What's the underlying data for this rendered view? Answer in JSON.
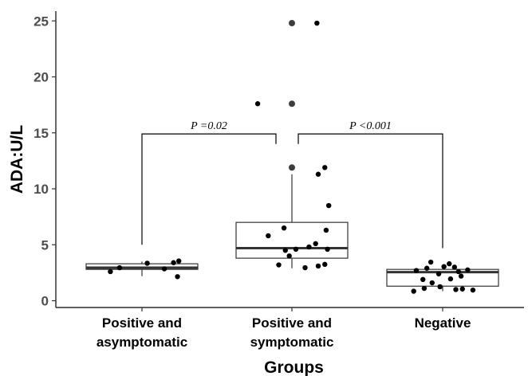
{
  "chart_data": {
    "type": "box",
    "title": "",
    "xlabel": "Groups",
    "ylabel": "ADA:U/L",
    "ylim": [
      0,
      26
    ],
    "yticks": [
      0,
      5,
      10,
      15,
      20,
      25
    ],
    "grid": false,
    "legend": "none",
    "categories": [
      "Positive and\nasymptomatic",
      "Positive and\nsymptomatic",
      "Negative"
    ],
    "boxes": [
      {
        "category": "Positive and\nasymptomatic",
        "whisker_low": 2.2,
        "q1": 2.8,
        "median": 2.95,
        "q3": 3.3,
        "whisker_high": 3.5,
        "outliers": []
      },
      {
        "category": "Positive and\nsymptomatic",
        "whisker_low": 2.9,
        "q1": 3.8,
        "median": 4.7,
        "q3": 7.0,
        "whisker_high": 11.3,
        "outliers": [
          11.9,
          17.6,
          24.8
        ]
      },
      {
        "category": "Negative",
        "whisker_low": 0.85,
        "q1": 1.3,
        "median": 2.55,
        "q3": 2.8,
        "whisker_high": 3.2,
        "outliers": []
      }
    ],
    "points": [
      {
        "category": "Positive and\nasymptomatic",
        "x_offset": -0.24,
        "y": 2.6
      },
      {
        "category": "Positive and\nasymptomatic",
        "x_offset": -0.17,
        "y": 2.95
      },
      {
        "category": "Positive and\nasymptomatic",
        "x_offset": 0.04,
        "y": 3.35
      },
      {
        "category": "Positive and\nasymptomatic",
        "x_offset": 0.17,
        "y": 2.85
      },
      {
        "category": "Positive and\nasymptomatic",
        "x_offset": 0.24,
        "y": 3.4
      },
      {
        "category": "Positive and\nasymptomatic",
        "x_offset": 0.28,
        "y": 3.55
      },
      {
        "category": "Positive and\nasymptomatic",
        "x_offset": 0.27,
        "y": 2.15
      },
      {
        "category": "Positive and\nsymptomatic",
        "x_offset": -0.18,
        "y": 5.8
      },
      {
        "category": "Positive and\nsymptomatic",
        "x_offset": -0.06,
        "y": 6.5
      },
      {
        "category": "Positive and\nsymptomatic",
        "x_offset": -0.05,
        "y": 4.5
      },
      {
        "category": "Positive and\nsymptomatic",
        "x_offset": -0.02,
        "y": 4.0
      },
      {
        "category": "Positive and\nsymptomatic",
        "x_offset": 0.03,
        "y": 4.6
      },
      {
        "category": "Positive and\nsymptomatic",
        "x_offset": 0.13,
        "y": 4.8
      },
      {
        "category": "Positive and\nsymptomatic",
        "x_offset": 0.18,
        "y": 5.1
      },
      {
        "category": "Positive and\nsymptomatic",
        "x_offset": 0.27,
        "y": 4.6
      },
      {
        "category": "Positive and\nsymptomatic",
        "x_offset": 0.26,
        "y": 6.3
      },
      {
        "category": "Positive and\nsymptomatic",
        "x_offset": -0.1,
        "y": 3.2
      },
      {
        "category": "Positive and\nsymptomatic",
        "x_offset": 0.1,
        "y": 2.95
      },
      {
        "category": "Positive and\nsymptomatic",
        "x_offset": 0.2,
        "y": 3.1
      },
      {
        "category": "Positive and\nsymptomatic",
        "x_offset": 0.25,
        "y": 3.25
      },
      {
        "category": "Positive and\nsymptomatic",
        "x_offset": 0.28,
        "y": 8.5
      },
      {
        "category": "Positive and\nsymptomatic",
        "x_offset": 0.2,
        "y": 11.3
      },
      {
        "category": "Positive and\nsymptomatic",
        "x_offset": 0.25,
        "y": 11.9
      },
      {
        "category": "Positive and\nsymptomatic",
        "x_offset": -0.26,
        "y": 17.6
      },
      {
        "category": "Positive and\nsymptomatic",
        "x_offset": 0.19,
        "y": 24.8
      },
      {
        "category": "Negative",
        "x_offset": -0.2,
        "y": 2.7
      },
      {
        "category": "Negative",
        "x_offset": -0.12,
        "y": 2.9
      },
      {
        "category": "Negative",
        "x_offset": -0.09,
        "y": 3.45
      },
      {
        "category": "Negative",
        "x_offset": -0.15,
        "y": 1.9
      },
      {
        "category": "Negative",
        "x_offset": -0.08,
        "y": 1.6
      },
      {
        "category": "Negative",
        "x_offset": -0.03,
        "y": 2.4
      },
      {
        "category": "Negative",
        "x_offset": 0.01,
        "y": 3.05
      },
      {
        "category": "Negative",
        "x_offset": 0.05,
        "y": 3.3
      },
      {
        "category": "Negative",
        "x_offset": 0.09,
        "y": 3.0
      },
      {
        "category": "Negative",
        "x_offset": 0.12,
        "y": 2.6
      },
      {
        "category": "Negative",
        "x_offset": 0.06,
        "y": 1.95
      },
      {
        "category": "Negative",
        "x_offset": 0.14,
        "y": 2.2
      },
      {
        "category": "Negative",
        "x_offset": 0.19,
        "y": 2.75
      },
      {
        "category": "Negative",
        "x_offset": -0.22,
        "y": 0.85
      },
      {
        "category": "Negative",
        "x_offset": -0.14,
        "y": 1.1
      },
      {
        "category": "Negative",
        "x_offset": -0.02,
        "y": 1.25
      },
      {
        "category": "Negative",
        "x_offset": 0.1,
        "y": 1.0
      },
      {
        "category": "Negative",
        "x_offset": 0.23,
        "y": 0.95
      },
      {
        "category": "Negative",
        "x_offset": 0.15,
        "y": 1.05
      }
    ],
    "comparisons": [
      {
        "from": 0,
        "to": 1,
        "label": "P =0.02",
        "y": 14.9,
        "left_tip": 5.0,
        "right_tip": 14.0
      },
      {
        "from": 1,
        "to": 2,
        "label": "P <0.001",
        "y": 14.9,
        "left_tip": 14.0,
        "right_tip": 4.7
      }
    ]
  }
}
